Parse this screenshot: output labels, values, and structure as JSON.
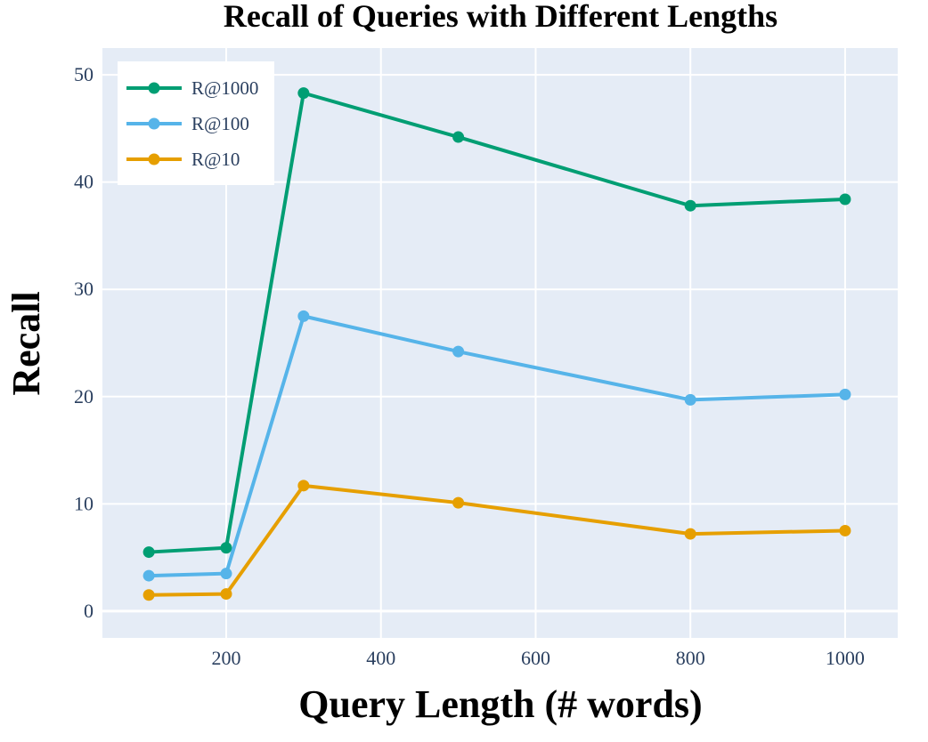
{
  "chart_data": {
    "type": "line",
    "title": "Recall of Queries with Different Lengths",
    "xlabel": "Query Length (# words)",
    "ylabel": "Recall",
    "xlim": [
      40,
      1068
    ],
    "ylim": [
      -2.5,
      52.5
    ],
    "xticks": [
      200,
      400,
      600,
      800,
      1000
    ],
    "yticks": [
      0,
      10,
      20,
      30,
      40,
      50
    ],
    "grid": true,
    "legend_position": "top-left",
    "plot_bgcolor": "#e5ecf6",
    "grid_color": "#ffffff",
    "x": [
      100,
      200,
      300,
      500,
      800,
      1000
    ],
    "series": [
      {
        "name": "R@1000",
        "color": "#009e73",
        "values": [
          5.5,
          5.9,
          48.3,
          44.2,
          37.8,
          38.4
        ]
      },
      {
        "name": "R@100",
        "color": "#56b4e9",
        "values": [
          3.3,
          3.5,
          27.5,
          24.2,
          19.7,
          20.2
        ]
      },
      {
        "name": "R@10",
        "color": "#e69f00",
        "values": [
          1.5,
          1.6,
          11.7,
          10.1,
          7.2,
          7.5
        ]
      }
    ]
  }
}
